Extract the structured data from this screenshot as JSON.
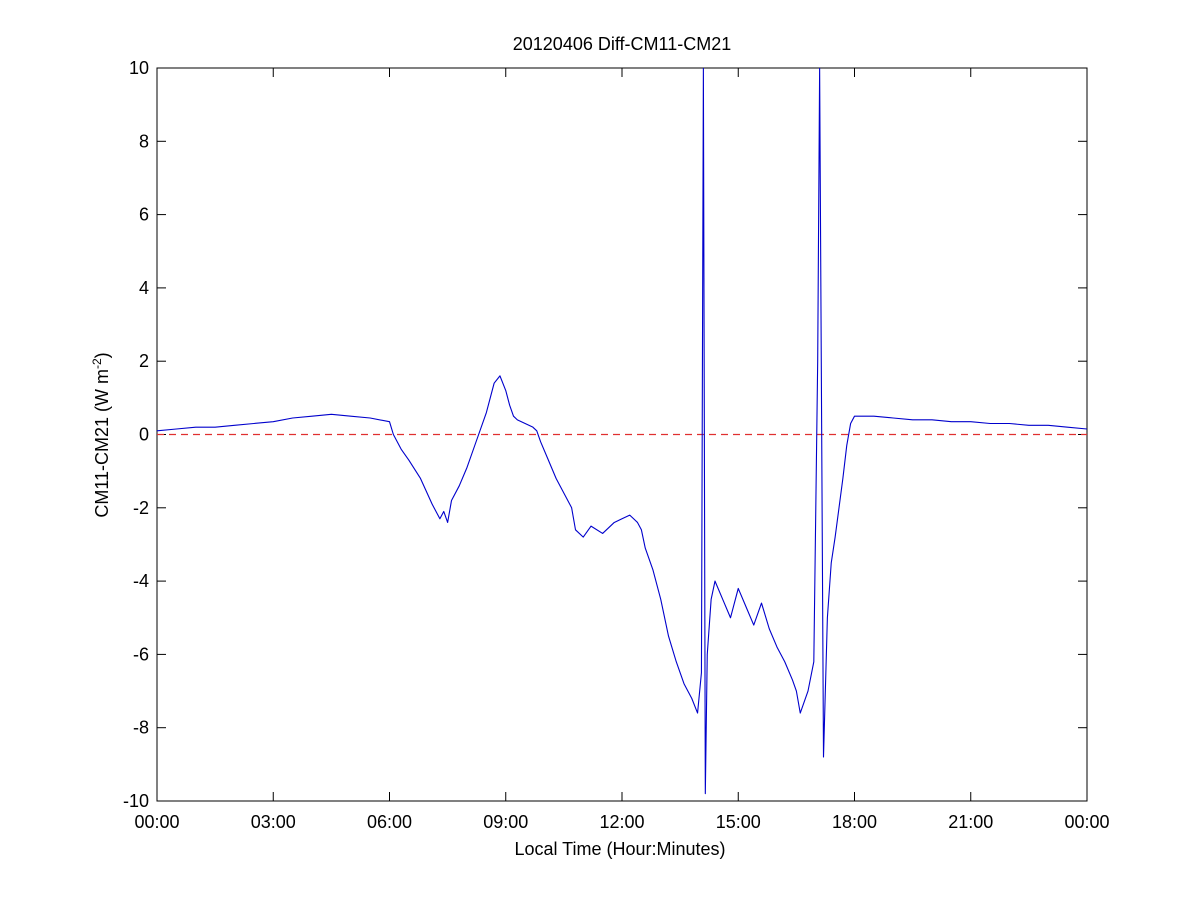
{
  "chart_data": {
    "type": "line",
    "title": "20120406 Diff-CM11-CM21",
    "xlabel": "Local Time (Hour:Minutes)",
    "ylabel": {
      "main": "CM11-CM21 (W m",
      "sup": "-2",
      "close": ")"
    },
    "xlim": [
      0,
      24
    ],
    "ylim": [
      -10,
      10
    ],
    "xticks": [
      0,
      3,
      6,
      9,
      12,
      15,
      18,
      21,
      24
    ],
    "xtick_labels": [
      "00:00",
      "03:00",
      "06:00",
      "09:00",
      "12:00",
      "15:00",
      "18:00",
      "21:00",
      "00:00"
    ],
    "yticks": [
      -10,
      -8,
      -6,
      -4,
      -2,
      0,
      2,
      4,
      6,
      8,
      10
    ],
    "ytick_labels": [
      "-10",
      "-8",
      "-6",
      "-4",
      "-2",
      "0",
      "2",
      "4",
      "6",
      "8",
      "10"
    ],
    "grid": false,
    "reference_line": {
      "y": 0,
      "style": "dashed",
      "color": "#e03030"
    },
    "series": [
      {
        "color": "#0000cc",
        "x": [
          0,
          0.5,
          1,
          1.5,
          2,
          2.5,
          3,
          3.5,
          4,
          4.5,
          5,
          5.5,
          6,
          6.1,
          6.3,
          6.5,
          6.8,
          7.1,
          7.3,
          7.4,
          7.5,
          7.6,
          7.8,
          8.0,
          8.2,
          8.5,
          8.7,
          8.85,
          9.0,
          9.1,
          9.2,
          9.3,
          9.5,
          9.7,
          9.8,
          9.9,
          10.1,
          10.3,
          10.5,
          10.7,
          10.8,
          11.0,
          11.2,
          11.5,
          11.8,
          12.0,
          12.2,
          12.4,
          12.5,
          12.6,
          12.8,
          13.0,
          13.2,
          13.4,
          13.6,
          13.8,
          13.95,
          14.05,
          14.1,
          14.15,
          14.2,
          14.3,
          14.4,
          14.6,
          14.8,
          15.0,
          15.2,
          15.4,
          15.6,
          15.8,
          16.0,
          16.2,
          16.4,
          16.5,
          16.6,
          16.8,
          16.95,
          17.05,
          17.1,
          17.2,
          17.3,
          17.4,
          17.5,
          17.6,
          17.7,
          17.8,
          17.9,
          18.0,
          18.5,
          19,
          19.5,
          20,
          20.5,
          21,
          21.5,
          22,
          22.5,
          23,
          23.5,
          24
        ],
        "y": [
          0.1,
          0.15,
          0.2,
          0.2,
          0.25,
          0.3,
          0.35,
          0.45,
          0.5,
          0.55,
          0.5,
          0.45,
          0.35,
          0.0,
          -0.4,
          -0.7,
          -1.2,
          -1.9,
          -2.3,
          -2.1,
          -2.4,
          -1.8,
          -1.4,
          -0.9,
          -0.3,
          0.6,
          1.4,
          1.6,
          1.2,
          0.8,
          0.5,
          0.4,
          0.3,
          0.2,
          0.1,
          -0.2,
          -0.7,
          -1.2,
          -1.6,
          -2.0,
          -2.6,
          -2.8,
          -2.5,
          -2.7,
          -2.4,
          -2.3,
          -2.2,
          -2.4,
          -2.6,
          -3.1,
          -3.7,
          -4.5,
          -5.5,
          -6.2,
          -6.8,
          -7.2,
          -7.6,
          -6.5,
          10,
          -9.8,
          -6.0,
          -4.5,
          -4.0,
          -4.5,
          -5.0,
          -4.2,
          -4.7,
          -5.2,
          -4.6,
          -5.3,
          -5.8,
          -6.2,
          -6.7,
          -7.0,
          -7.6,
          -7.0,
          -6.2,
          2.0,
          10,
          -8.8,
          -5.0,
          -3.5,
          -2.8,
          -2.0,
          -1.2,
          -0.3,
          0.3,
          0.5,
          0.5,
          0.45,
          0.4,
          0.4,
          0.35,
          0.35,
          0.3,
          0.3,
          0.25,
          0.25,
          0.2,
          0.15
        ]
      }
    ]
  }
}
